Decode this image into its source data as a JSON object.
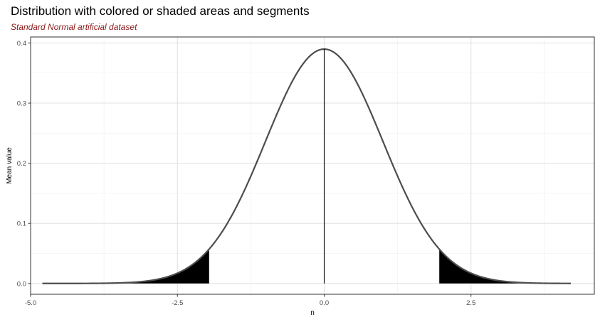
{
  "chart_data": {
    "type": "area",
    "title": "Distribution with colored or shaded areas and segments",
    "subtitle": "Standard Normal artificial dataset",
    "xlabel": "n",
    "ylabel": "Mean value",
    "xlim": [
      -5.0,
      4.6
    ],
    "ylim": [
      -0.018,
      0.41
    ],
    "x_ticks": [
      -5.0,
      -2.5,
      0.0,
      2.5
    ],
    "x_tick_labels": [
      "-5.0",
      "-2.5",
      "0.0",
      "2.5"
    ],
    "y_ticks": [
      0.0,
      0.1,
      0.2,
      0.3,
      0.4
    ],
    "y_tick_labels": [
      "0.0",
      "0.1",
      "0.2",
      "0.3",
      "0.4"
    ],
    "grid": true,
    "curve": {
      "distribution": "normal density",
      "x_range": [
        -4.8,
        4.2
      ],
      "mean": 0.0,
      "sd": 1.0,
      "peak_scale": 0.977,
      "color": "#4d4d4d"
    },
    "shaded_areas": [
      {
        "from": -4.8,
        "to": -1.96,
        "fill": "#000000"
      },
      {
        "from": 1.96,
        "to": 4.2,
        "fill": "#000000"
      }
    ],
    "segments": [
      {
        "x": 0.0,
        "y_from": 0.0,
        "y_to": 0.39,
        "color": "#000000"
      }
    ],
    "colors": {
      "panel_border": "#333333",
      "grid_major": "#e0e0e0",
      "grid_minor": "#f0f0f0",
      "subtitle": "#8b1a1a"
    }
  }
}
